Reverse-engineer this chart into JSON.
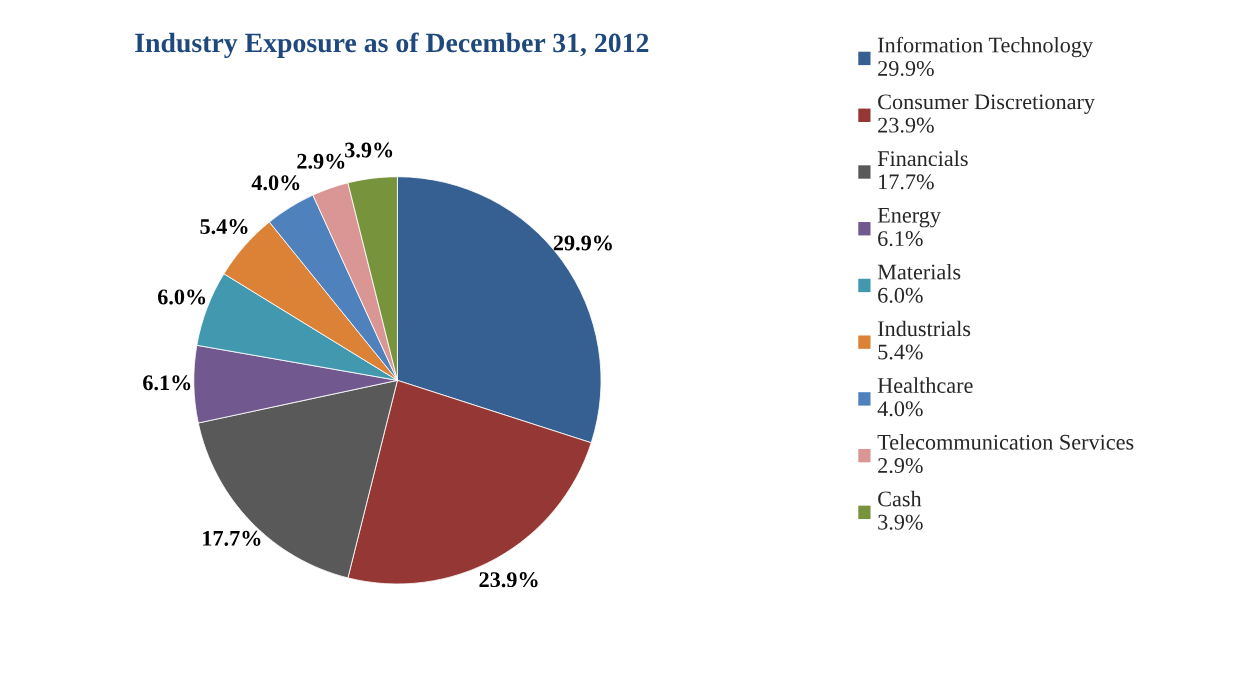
{
  "chart_data": {
    "type": "pie",
    "title": "Industry Exposure as of December 31, 2012",
    "categories": [
      "Information Technology",
      "Consumer Discretionary",
      "Financials",
      "Energy",
      "Materials",
      "Industrials",
      "Healthcare",
      "Telecommunication Services",
      "Cash"
    ],
    "values": [
      29.9,
      23.9,
      17.7,
      6.1,
      6.0,
      5.4,
      4.0,
      2.9,
      3.9
    ],
    "value_labels": [
      "29.9%",
      "23.9%",
      "17.7%",
      "6.1%",
      "6.0%",
      "5.4%",
      "4.0%",
      "2.9%",
      "3.9%"
    ],
    "colors": [
      "#376092",
      "#953735",
      "#595959",
      "#71588f",
      "#4298af",
      "#dc8237",
      "#4f81bd",
      "#d99694",
      "#77933c"
    ],
    "legend": "right"
  }
}
